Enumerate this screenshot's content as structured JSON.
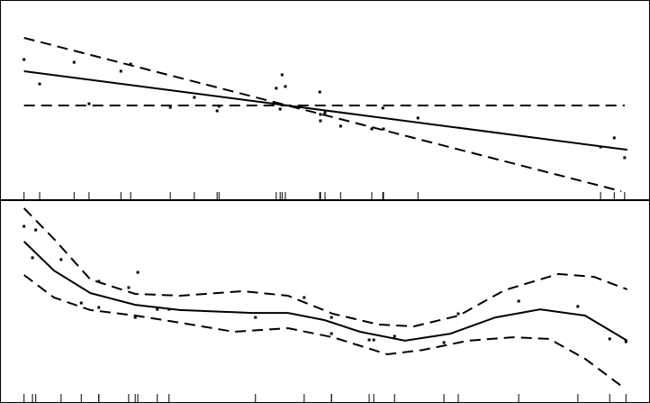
{
  "chart_data": [
    {
      "type": "scatter",
      "xlim": [
        0,
        100
      ],
      "ylim": [
        0,
        100
      ],
      "rug": true,
      "series": [
        {
          "style": "points",
          "color": "#000000",
          "x": [
            3.7,
            6.1,
            11.4,
            13.7,
            18.6,
            20.1,
            26.2,
            29.9,
            33.4,
            33.7,
            42.5,
            43.1,
            43.4,
            43.9,
            49.2,
            49.3,
            49.3,
            50,
            52.4,
            57.2,
            58.9,
            59,
            64.3,
            92.4,
            94.5,
            96.1
          ],
          "values": [
            70,
            57.7,
            68.6,
            47.7,
            64.1,
            67.7,
            45.9,
            50.9,
            44.1,
            46.4,
            55.5,
            45,
            62.3,
            56.4,
            53.6,
            42.3,
            39.1,
            43.2,
            36.4,
            35,
            45.5,
            35,
            40.5,
            25.9,
            30.5,
            20.5
          ]
        },
        {
          "style": "solid",
          "color": "#000000",
          "x": [
            3.7,
            96.5
          ],
          "values": [
            64.1,
            24.5
          ]
        },
        {
          "style": "dashed",
          "color": "#000000",
          "x": [
            3.7,
            95.6
          ],
          "values": [
            80.9,
            3.6
          ]
        },
        {
          "style": "dashed",
          "color": "#000000",
          "x": [
            3.7,
            96.1
          ],
          "values": [
            46.8,
            46.8
          ]
        }
      ]
    },
    {
      "type": "scatter",
      "xlim": [
        0,
        100
      ],
      "ylim": [
        0,
        100
      ],
      "rug": true,
      "series": [
        {
          "style": "points",
          "color": "#000000",
          "x": [
            3.7,
            5,
            5.5,
            9.4,
            12.5,
            15.2,
            15.2,
            19.8,
            20.8,
            21.2,
            24.2,
            26,
            39.3,
            46.8,
            51,
            51,
            56.8,
            57.5,
            60.7,
            68.3,
            70.5,
            79.8,
            88.9,
            93.8,
            96.3
          ],
          "values": [
            87.1,
            71.6,
            85.3,
            70.7,
            49.3,
            60,
            47.1,
            56.9,
            42.2,
            64.4,
            46.2,
            46.2,
            42.2,
            52,
            42.2,
            34.2,
            31.1,
            31.1,
            32.9,
            29.8,
            44,
            50.2,
            47.6,
            31.6,
            30.2
          ]
        },
        {
          "style": "solid",
          "color": "#000000",
          "x": [
            3.7,
            8.3,
            13.9,
            20.8,
            27.7,
            38.8,
            44.3,
            49.9,
            55.4,
            62.3,
            69.3,
            76.2,
            83.1,
            90,
            96.5
          ],
          "values": [
            79.6,
            65.3,
            54.2,
            48.4,
            45.8,
            44.4,
            44.4,
            40.9,
            35.1,
            30.7,
            34.2,
            42.2,
            46.2,
            43.1,
            30.7
          ]
        },
        {
          "style": "dashed",
          "color": "#000000",
          "x": [
            3.7,
            8.3,
            13.9,
            20.8,
            27.7,
            37.4,
            44.3,
            51.2,
            58.2,
            63.7,
            70.6,
            77.6,
            85.9,
            91.4,
            96.5
          ],
          "values": [
            96,
            80.9,
            60.9,
            53.8,
            52.9,
            55.1,
            52.9,
            44,
            38.7,
            37.8,
            43.1,
            55.6,
            63.6,
            62.2,
            56
          ]
        },
        {
          "style": "dashed",
          "color": "#000000",
          "x": [
            3.7,
            8.3,
            13.9,
            20.8,
            27.7,
            36,
            44.3,
            51.2,
            59.6,
            65.1,
            72,
            78.9,
            84.5,
            90,
            95.6
          ],
          "values": [
            63.1,
            52,
            45.8,
            43.1,
            39.6,
            35.1,
            36.9,
            32.4,
            24,
            26.2,
            30.7,
            32.4,
            31.6,
            21.8,
            8.4
          ]
        }
      ]
    }
  ]
}
